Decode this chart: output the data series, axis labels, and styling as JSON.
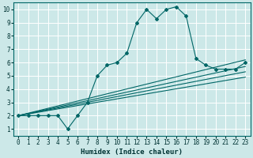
{
  "xlabel": "Humidex (Indice chaleur)",
  "bg_color": "#cce8e8",
  "grid_color": "#ffffff",
  "line_color": "#006666",
  "xlim": [
    -0.5,
    23.5
  ],
  "ylim": [
    0.5,
    10.5
  ],
  "xticks": [
    0,
    1,
    2,
    3,
    4,
    5,
    6,
    7,
    8,
    9,
    10,
    11,
    12,
    13,
    14,
    15,
    16,
    17,
    18,
    19,
    20,
    21,
    22,
    23
  ],
  "yticks": [
    1,
    2,
    3,
    4,
    5,
    6,
    7,
    8,
    9,
    10
  ],
  "main_x": [
    0,
    1,
    2,
    3,
    4,
    5,
    6,
    7,
    8,
    9,
    10,
    11,
    12,
    13,
    14,
    15,
    16,
    17,
    18,
    19,
    20,
    21,
    22,
    23
  ],
  "main_y": [
    2,
    2,
    2,
    2,
    2,
    1,
    2,
    3,
    5,
    5.8,
    6,
    6.7,
    9,
    10,
    9.3,
    10,
    10.2,
    9.5,
    6.3,
    5.8,
    5.5,
    5.5,
    5.5,
    6
  ],
  "straight_lines": [
    {
      "x": [
        0,
        23
      ],
      "y": [
        2.0,
        6.2
      ]
    },
    {
      "x": [
        0,
        23
      ],
      "y": [
        2.0,
        5.7
      ]
    },
    {
      "x": [
        0,
        23
      ],
      "y": [
        2.0,
        5.3
      ]
    },
    {
      "x": [
        0,
        23
      ],
      "y": [
        2.0,
        4.9
      ]
    }
  ],
  "tick_fontsize": 5.5,
  "xlabel_fontsize": 6.5
}
